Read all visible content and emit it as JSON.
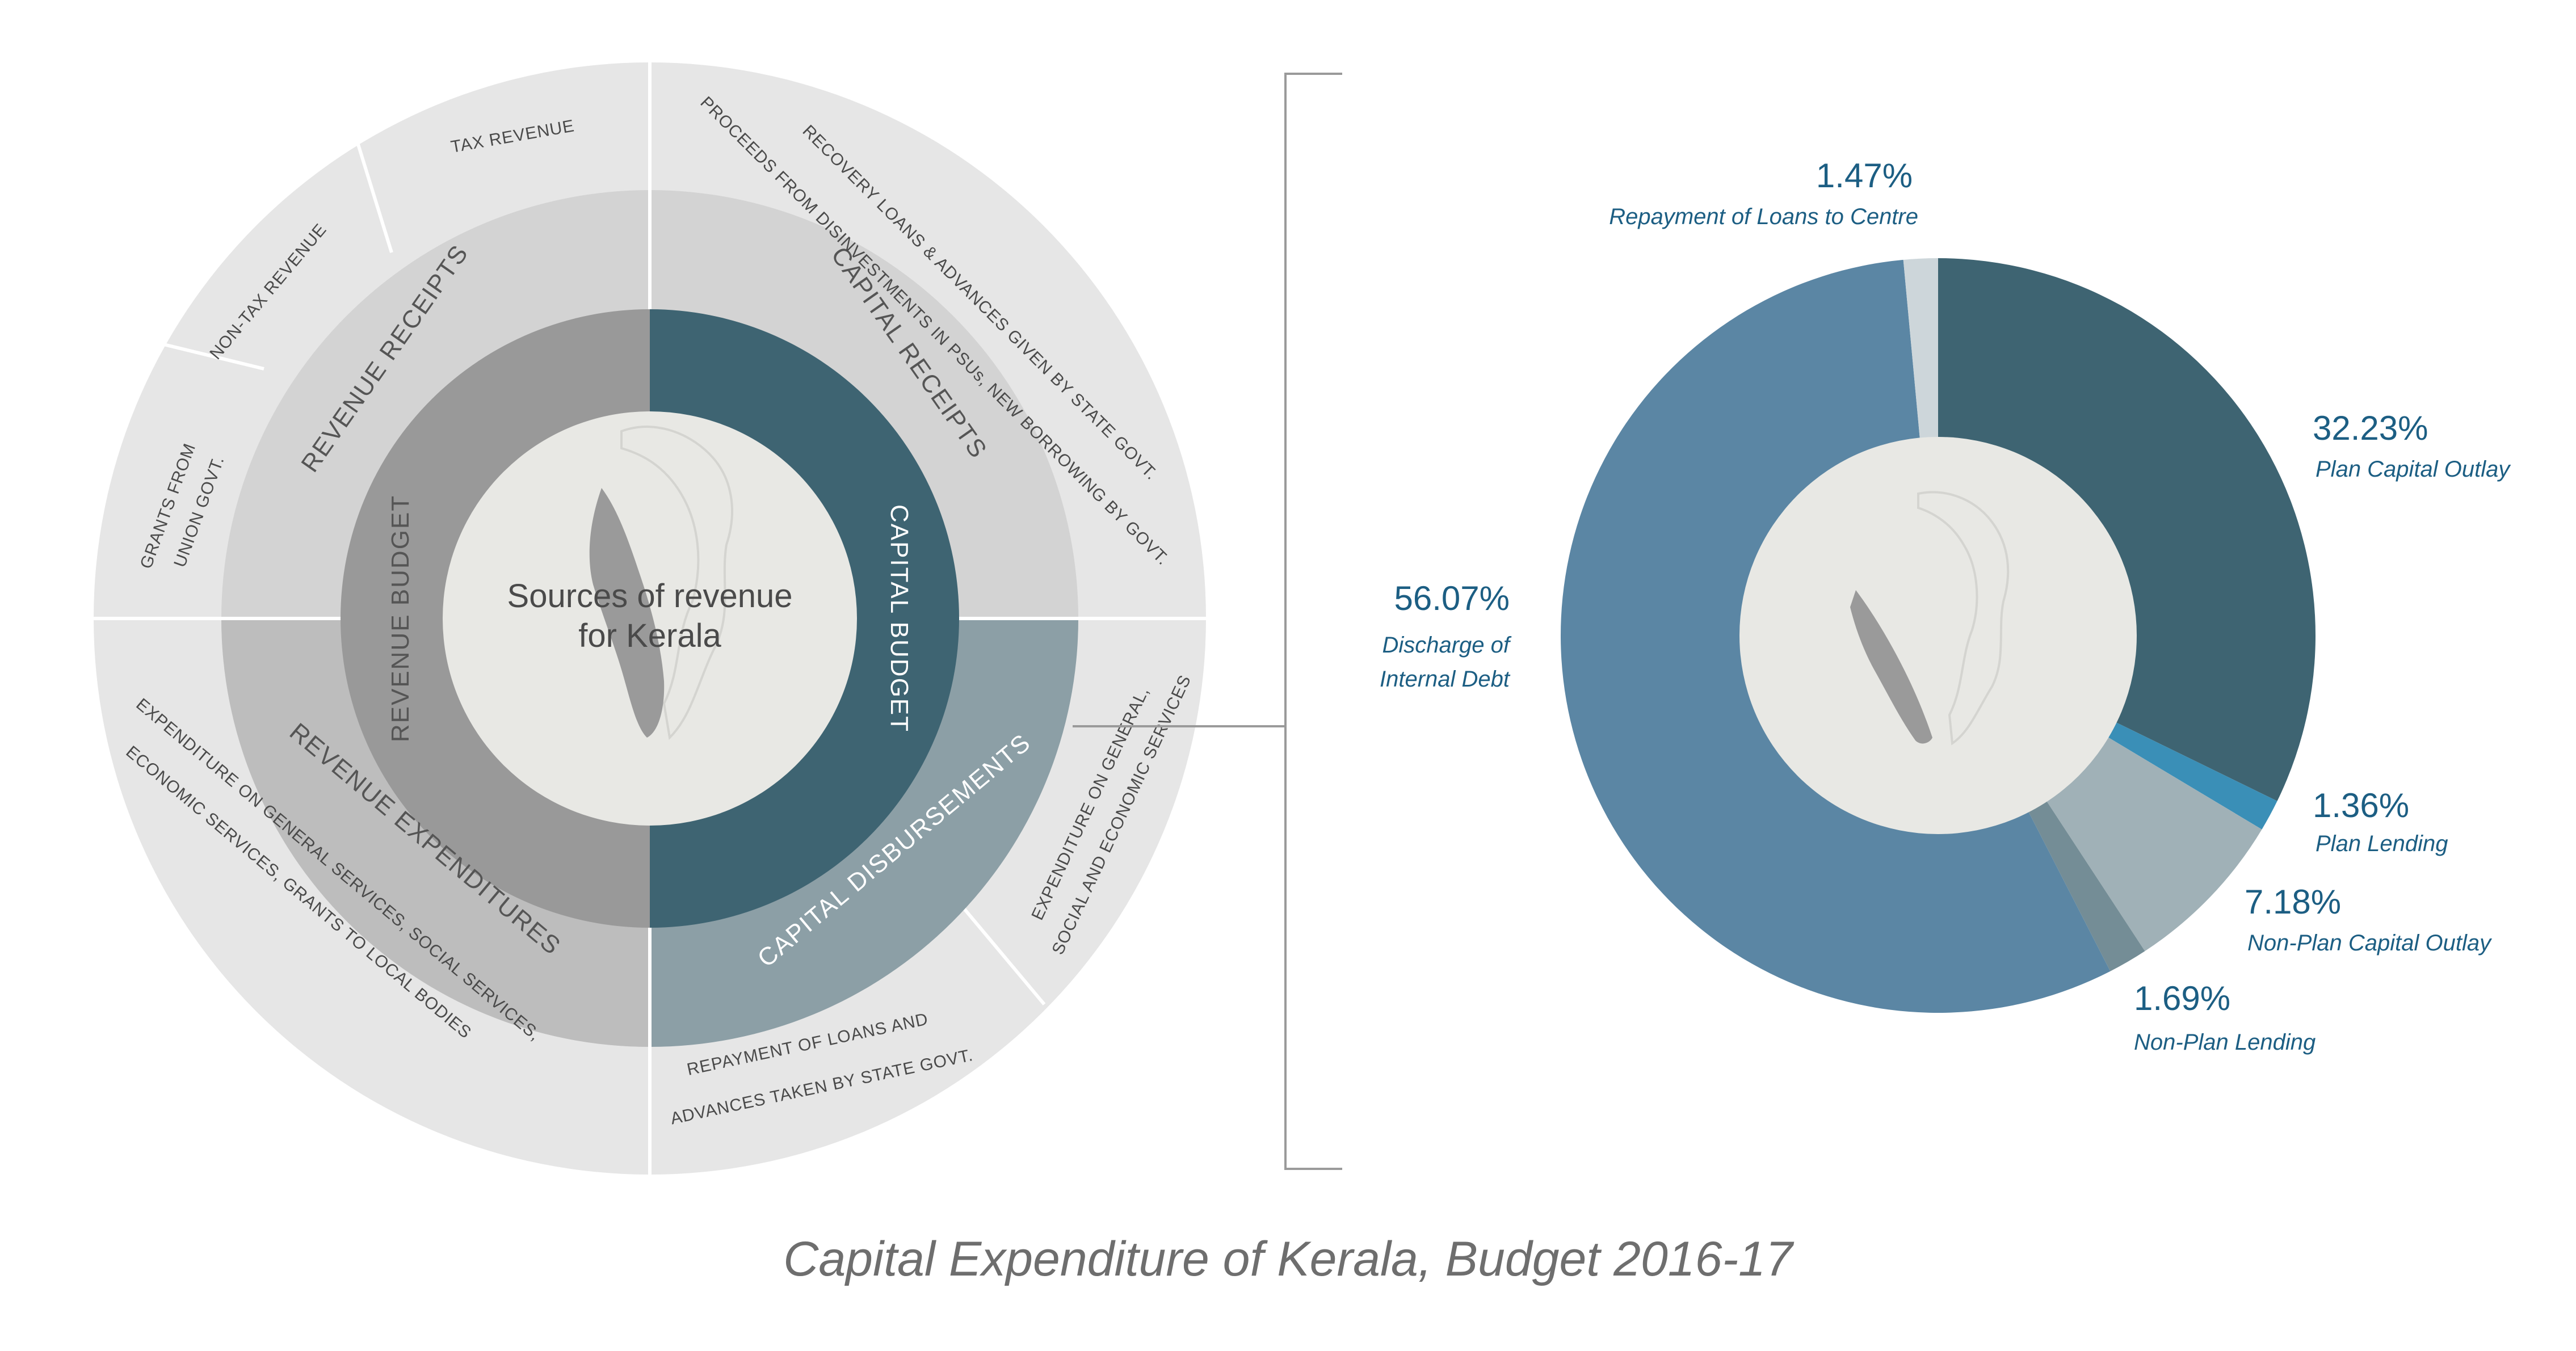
{
  "title": "Capital Expenditure of Kerala, Budget 2016-17",
  "sunburst": {
    "center_label_line1": "Sources of revenue",
    "center_label_line2": "for Kerala",
    "inner_ring": {
      "revenue_budget": "REVENUE  BUDGET",
      "capital_budget": "CAPITAL  BUDGET"
    },
    "middle_ring": {
      "revenue_receipts": "REVENUE RECEIPTS",
      "capital_receipts": "CAPITAL RECEIPTS",
      "revenue_expenditures": "REVENUE  EXPENDITURES",
      "capital_disbursements": "CAPITAL  DISBURSEMENTS"
    },
    "outer_ring": {
      "tax_revenue": "TAX REVENUE",
      "non_tax_revenue": "NON-TAX REVENUE",
      "grants_line1": "GRANTS FROM",
      "grants_line2": "UNION GOVT.",
      "recovery_line1": "RECOVERY LOANS & ADVANCES GIVEN BY STATE GOVT.",
      "recovery_line2": "PROCEEDS FROM DISINVESTMENTS IN PSUs,  NEW BORROWING BY GOVT.",
      "rev_exp_line1": "EXPENDITURE ON GENERAL SERVICES, SOCIAL SERVICES,",
      "rev_exp_line2": "ECONOMIC SERVICES, GRANTS TO LOCAL BODIES",
      "cap_exp_line1": "EXPENDITURE ON GENERAL,",
      "cap_exp_line2": "SOCIAL AND ECONOMIC SERVICES",
      "repay_line1": "REPAYMENT OF LOANS AND",
      "repay_line2": "ADVANCES TAKEN BY STATE GOVT."
    }
  },
  "colors": {
    "plan_capital_outlay": "#3e6472",
    "plan_lending": "#3a8fb7",
    "non_plan_capital_outlay": "#a0b1b7",
    "non_plan_lending": "#748d96",
    "discharge_internal_debt": "#5b86a4",
    "repayment_loans_centre": "#cdd6da",
    "label": "#1c5e83"
  },
  "chart_data": {
    "type": "pie",
    "title": "Capital Expenditure of Kerala, Budget 2016-17",
    "variant": "donut",
    "series": [
      {
        "key": "plan_capital_outlay",
        "name": "Plan Capital Outlay",
        "value": 32.23,
        "label": "32.23%"
      },
      {
        "key": "plan_lending",
        "name": "Plan Lending",
        "value": 1.36,
        "label": "1.36%"
      },
      {
        "key": "non_plan_capital_outlay",
        "name": "Non-Plan Capital Outlay",
        "value": 7.18,
        "label": "7.18%"
      },
      {
        "key": "non_plan_lending",
        "name": "Non-Plan Lending",
        "value": 1.69,
        "label": "1.69%"
      },
      {
        "key": "discharge_internal_debt",
        "name": "Discharge of Internal Debt",
        "name_line1": "Discharge of",
        "name_line2": "Internal Debt",
        "value": 56.07,
        "label": "56.07%"
      },
      {
        "key": "repayment_loans_centre",
        "name": "Repayment of Loans to Centre",
        "value": 1.47,
        "label": "1.47%"
      }
    ]
  }
}
